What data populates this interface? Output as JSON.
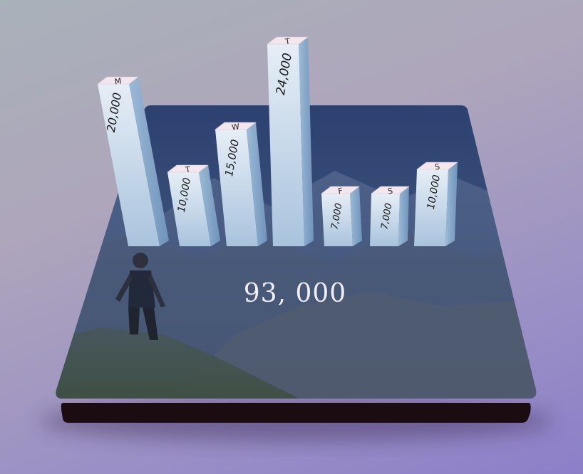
{
  "chart_data": {
    "type": "bar",
    "categories": [
      "M",
      "T",
      "W",
      "T",
      "F",
      "S",
      "S"
    ],
    "values": [
      20000,
      10000,
      15000,
      24000,
      7000,
      7000,
      10000
    ],
    "value_labels": [
      "20,000",
      "10,000",
      "15,000",
      "24,000",
      "7,000",
      "7,000",
      "10,000"
    ],
    "total_label": "93, 000",
    "grid": false,
    "legend": "none"
  },
  "colors": {
    "bar_front_top": "#e6eef6",
    "bar_front_bottom": "#a9c3dd",
    "bar_side": "#86a8cc",
    "bar_cap": "#f3e6ec",
    "platform": "#2f4677",
    "platform_base": "#1a0c10",
    "total_text": "#f2ecf4"
  }
}
